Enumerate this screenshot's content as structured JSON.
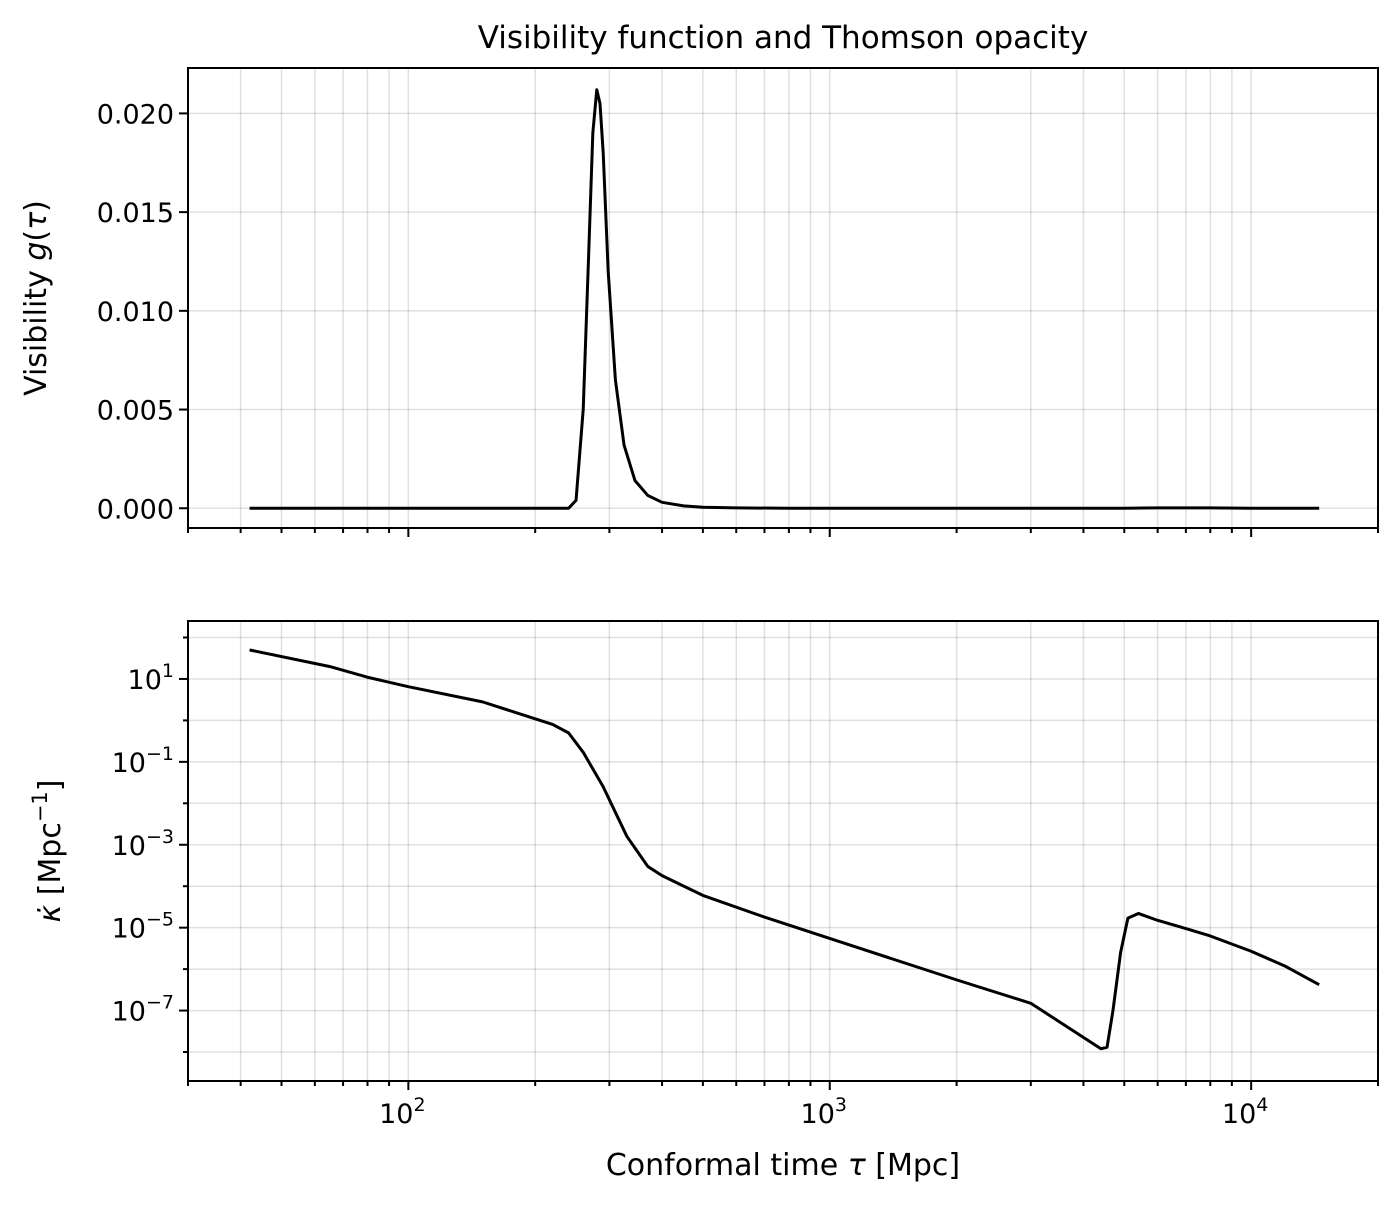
{
  "chart_data": [
    {
      "type": "line",
      "title": "Visibility function and Thomson opacity",
      "xlabel": "",
      "ylabel": "Visibility g(τ)",
      "x_scale": "log",
      "y_scale": "linear",
      "xlim": [
        30,
        20000
      ],
      "ylim": [
        -0.001,
        0.0223
      ],
      "x_ticks": [
        100,
        1000,
        10000
      ],
      "x_tick_labels_shown": false,
      "y_ticks": [
        0.0,
        0.005,
        0.01,
        0.015,
        0.02
      ],
      "y_tick_labels": [
        "0.000",
        "0.005",
        "0.010",
        "0.015",
        "0.020"
      ],
      "grid": true,
      "line_color": "#000000",
      "series": [
        {
          "x": [
            42,
            100,
            200,
            240,
            250,
            260,
            268,
            274,
            280,
            285,
            290,
            298,
            310,
            325,
            345,
            370,
            400,
            450,
            500,
            600,
            800,
            1000,
            2000,
            5000,
            6000,
            8000,
            10000,
            14500
          ],
          "y": [
            0.0,
            0.0,
            0.0,
            0.0,
            0.0004,
            0.005,
            0.013,
            0.019,
            0.0212,
            0.0205,
            0.018,
            0.012,
            0.0065,
            0.0032,
            0.0014,
            0.00065,
            0.0003,
            0.00012,
            5e-05,
            2e-05,
            0.0,
            0.0,
            0.0,
            0.0,
            2e-05,
            2e-05,
            0.0,
            0.0
          ]
        }
      ]
    },
    {
      "type": "line",
      "title": "",
      "xlabel": "Conformal time τ [Mpc]",
      "ylabel": "κ̇ [Mpc⁻¹]",
      "x_scale": "log",
      "y_scale": "log",
      "xlim": [
        30,
        20000
      ],
      "ylim": [
        2e-09,
        250
      ],
      "x_ticks": [
        100,
        1000,
        10000
      ],
      "x_tick_labels": [
        [
          "10",
          "2"
        ],
        [
          "10",
          "3"
        ],
        [
          "10",
          "4"
        ]
      ],
      "y_ticks": [
        10,
        0.1,
        0.001,
        1e-05,
        1e-07
      ],
      "y_tick_labels": [
        [
          "10",
          "1"
        ],
        [
          "10",
          "−1"
        ],
        [
          "10",
          "−3"
        ],
        [
          "10",
          "−5"
        ],
        [
          "10",
          "−7"
        ]
      ],
      "grid": true,
      "line_color": "#000000",
      "series": [
        {
          "x": [
            42,
            65,
            80,
            100,
            150,
            220,
            240,
            260,
            290,
            330,
            370,
            400,
            500,
            700,
            1000,
            2000,
            3000,
            4400,
            4550,
            4700,
            4900,
            5100,
            5400,
            6000,
            7000,
            8000,
            10000,
            12000,
            14500
          ],
          "y": [
            50,
            20,
            11,
            6.5,
            2.8,
            0.8,
            0.5,
            0.17,
            0.025,
            0.0016,
            0.0003,
            0.00018,
            6e-05,
            1.8e-05,
            5.5e-06,
            5.5e-07,
            1.5e-07,
            1.2e-08,
            1.3e-08,
            1e-07,
            2.5e-06,
            1.7e-05,
            2.2e-05,
            1.5e-05,
            9.5e-06,
            6.3e-06,
            2.7e-06,
            1.2e-06,
            4.2e-07
          ]
        }
      ]
    }
  ]
}
